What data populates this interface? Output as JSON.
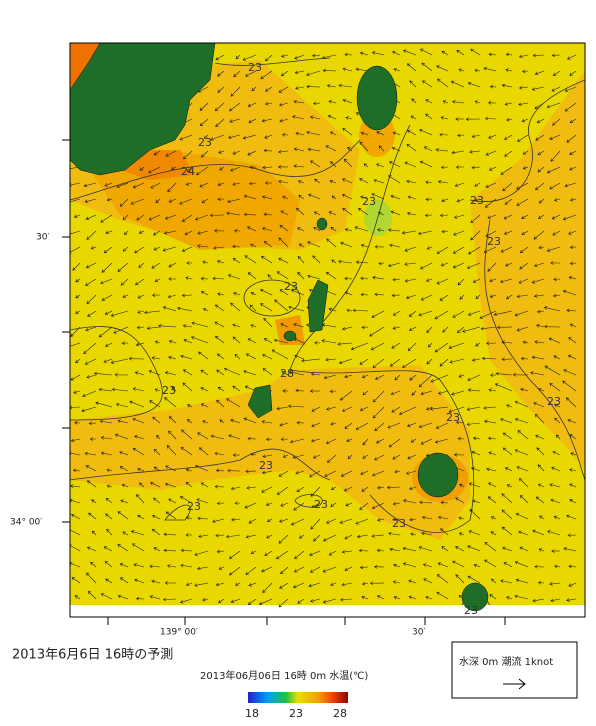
{
  "title": "2013年6月6日 16時の予測",
  "subtitle": "2013年06月06日 16時 0m 水温(℃)",
  "axis": {
    "lat_labels": [
      "30′",
      "34° 00′"
    ],
    "lon_labels": [
      "139° 00′",
      "30′"
    ]
  },
  "contour_labels": [
    23,
    23,
    24,
    23,
    23,
    23,
    23,
    28,
    23,
    23,
    23,
    23,
    23,
    23,
    23,
    23
  ],
  "colorbar": {
    "ticks": [
      18,
      23,
      28
    ]
  },
  "legend": {
    "label": "水深 0m 潮流 1knot"
  }
}
